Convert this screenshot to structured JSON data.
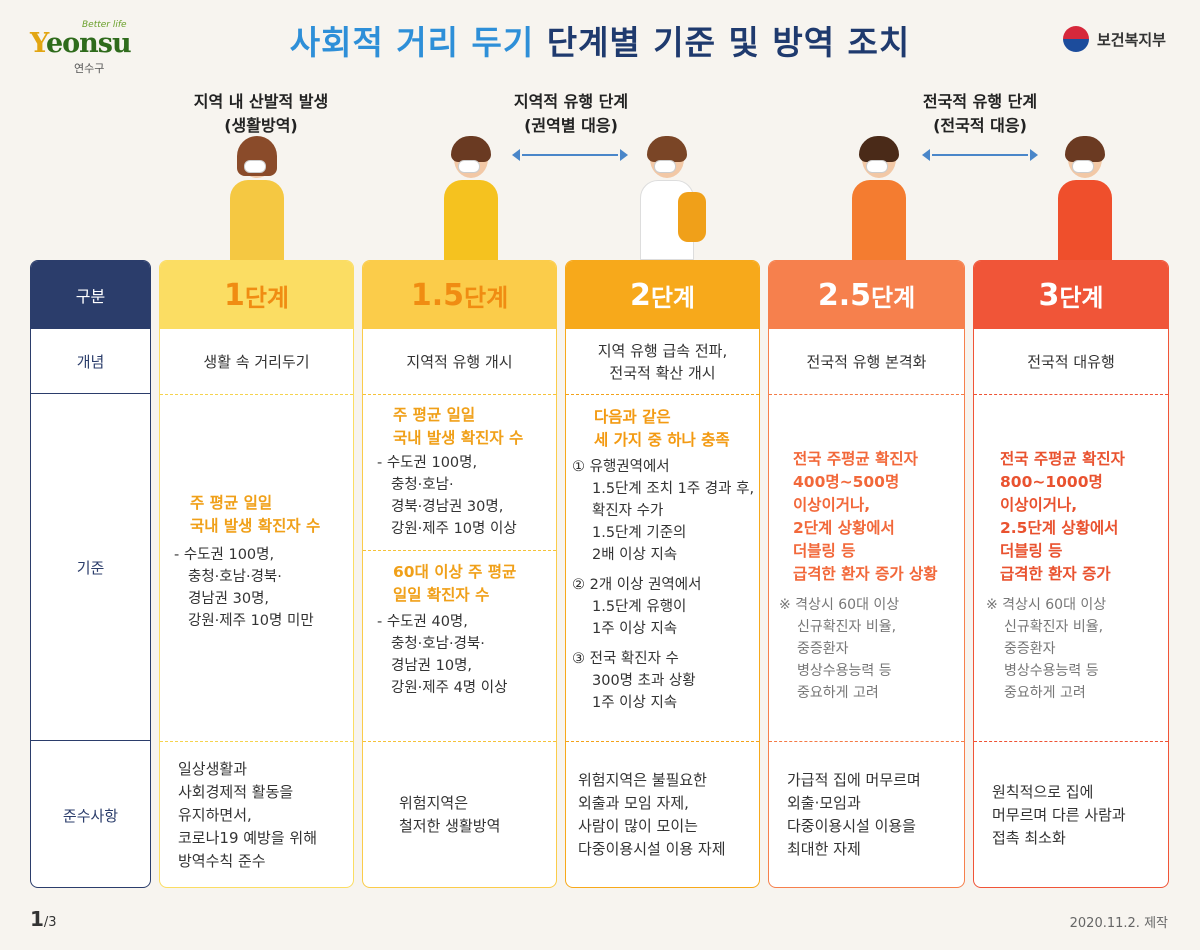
{
  "header": {
    "logo_tag": "Better life",
    "logo_word_y": "Y",
    "logo_word_rest": "eonsu",
    "logo_sub": "연수구",
    "title_highlight": "사회적 거리 두기",
    "title_rest": " 단계별 기준 및 방역 조치",
    "ministry": "보건복지부"
  },
  "phases": [
    {
      "line1": "지역 내 산발적 발생",
      "line2": "(생활방역)"
    },
    {
      "line1": "지역적 유행 단계",
      "line2": "(권역별 대응)"
    },
    {
      "line1": "전국적 유행 단계",
      "line2": "(전국적 대응)"
    }
  ],
  "row_labels": {
    "header": "구분",
    "concept": "개념",
    "criteria": "기준",
    "rules": "준수사항"
  },
  "colors": {
    "navy": "#2b3d6b",
    "stage1": "#fbdd63",
    "stage15": "#fbcc4a",
    "stage2": "#f7a91b",
    "stage25": "#f6804d",
    "stage3": "#f05538"
  },
  "stages": [
    {
      "num": "1",
      "unit": "단계",
      "concept": [
        "생활 속 거리두기"
      ],
      "crit_head": [
        "주 평균 일일",
        "국내 발생 확진자 수"
      ],
      "crit_items": [
        "- 수도권 100명,",
        "충청·호남·경북·",
        "경남권 30명,",
        "강원·제주 10명 미만"
      ],
      "rules": [
        "일상생활과",
        "사회경제적 활동을",
        "유지하면서,",
        "코로나19 예방을 위해",
        "방역수칙 준수"
      ]
    },
    {
      "num": "1.5",
      "unit": "단계",
      "concept": [
        "지역적 유행 개시"
      ],
      "crit_head_a": [
        "주 평균 일일",
        "국내 발생 확진자 수"
      ],
      "crit_items_a": [
        "- 수도권 100명,",
        "충청·호남·",
        "경북·경남권 30명,",
        "강원·제주 10명 이상"
      ],
      "crit_head_b": [
        "60대 이상 주 평균",
        "일일 확진자 수"
      ],
      "crit_items_b": [
        "- 수도권 40명,",
        "충청·호남·경북·",
        "경남권 10명,",
        "강원·제주 4명 이상"
      ],
      "rules": [
        "위험지역은",
        "철저한 생활방역"
      ]
    },
    {
      "num": "2",
      "unit": "단계",
      "concept": [
        "지역 유행 급속 전파,",
        "전국적 확산 개시"
      ],
      "crit_head": [
        "다음과 같은",
        "세 가지 중 하나 충족"
      ],
      "crit_items": [
        [
          "① 유행권역에서",
          "1.5단계 조치 1주 경과 후,",
          "확진자 수가",
          "1.5단계 기준의",
          "2배 이상 지속"
        ],
        [
          "② 2개 이상 권역에서",
          "1.5단계 유행이",
          "1주 이상 지속"
        ],
        [
          "③ 전국 확진자 수",
          "300명 초과 상황",
          "1주 이상 지속"
        ]
      ],
      "rules": [
        "위험지역은 불필요한",
        "외출과 모임 자제,",
        "사람이 많이 모이는",
        "다중이용시설 이용 자제"
      ]
    },
    {
      "num": "2.5",
      "unit": "단계",
      "concept": [
        "전국적 유행 본격화"
      ],
      "crit_head": [
        "전국 주평균 확진자",
        "400명~500명",
        "이상이거나,",
        "2단계 상황에서",
        "더블링 등",
        "급격한 환자 증가 상황"
      ],
      "crit_note": [
        "※ 격상시 60대 이상",
        "신규확진자 비율,",
        "중증환자",
        "병상수용능력 등",
        "중요하게 고려"
      ],
      "rules": [
        "가급적 집에 머무르며",
        "외출·모임과",
        "다중이용시설 이용을",
        "최대한 자제"
      ]
    },
    {
      "num": "3",
      "unit": "단계",
      "concept": [
        "전국적 대유행"
      ],
      "crit_head": [
        "전국 주평균 확진자",
        "800~1000명",
        "이상이거나,",
        "2.5단계 상황에서",
        "더블링 등",
        "급격한 환자 증가"
      ],
      "crit_note": [
        "※ 격상시 60대 이상",
        "신규확진자 비율,",
        "중증환자",
        "병상수용능력 등",
        "중요하게 고려"
      ],
      "rules": [
        "원칙적으로 집에",
        "머무르며 다른 사람과",
        "접촉 최소화"
      ]
    }
  ],
  "footer": {
    "page_current": "1",
    "page_total": "/3",
    "date": "2020.11.2. 제작"
  }
}
